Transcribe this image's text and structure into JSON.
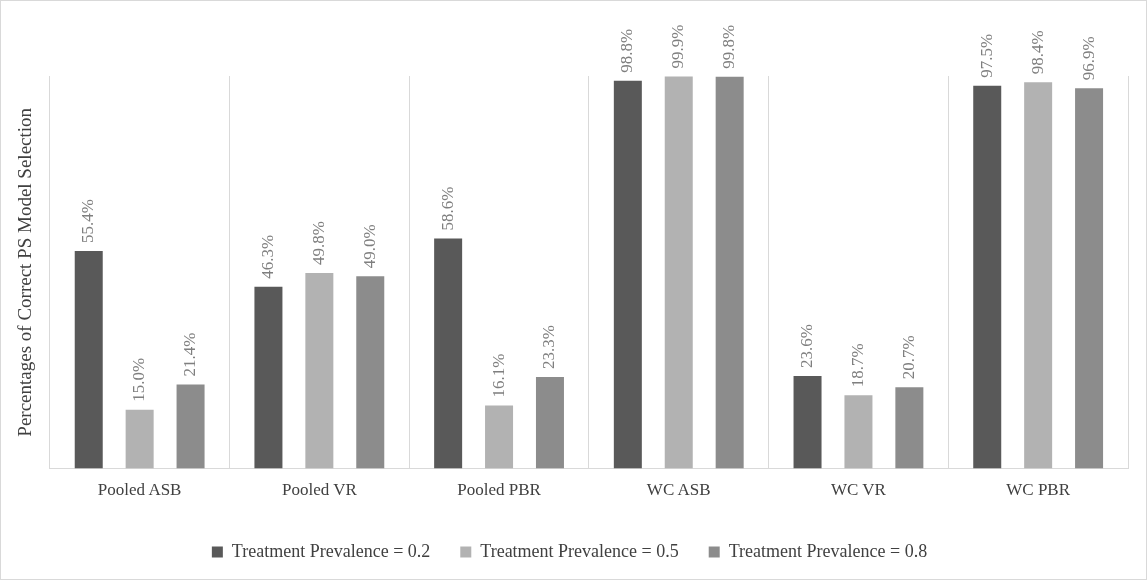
{
  "chart_data": {
    "type": "bar",
    "ylabel": "Percentages of Correct PS Model Selection",
    "categories": [
      "Pooled ASB",
      "Pooled VR",
      "Pooled PBR",
      "WC ASB",
      "WC VR",
      "WC PBR"
    ],
    "series": [
      {
        "name": "Treatment Prevalence = 0.2",
        "color": "#595959",
        "values": [
          55.4,
          46.3,
          58.6,
          98.8,
          23.6,
          97.5
        ],
        "value_labels": [
          "55.4%",
          "46.3%",
          "58.6%",
          "98.8%",
          "23.6%",
          "97.5%"
        ]
      },
      {
        "name": "Treatment Prevalence = 0.5",
        "color": "#b2b2b2",
        "values": [
          15.0,
          49.8,
          16.1,
          99.9,
          18.7,
          98.4
        ],
        "value_labels": [
          "15.0%",
          "49.8%",
          "16.1%",
          "99.9%",
          "18.7%",
          "98.4%"
        ]
      },
      {
        "name": "Treatment Prevalence = 0.8",
        "color": "#8c8c8c",
        "values": [
          21.4,
          49.0,
          23.3,
          99.8,
          20.7,
          96.9
        ],
        "value_labels": [
          "21.4%",
          "49.0%",
          "23.3%",
          "99.8%",
          "20.7%",
          "96.9%"
        ]
      }
    ],
    "tick_labels": "x",
    "grid": "x",
    "legend": "bottom"
  }
}
